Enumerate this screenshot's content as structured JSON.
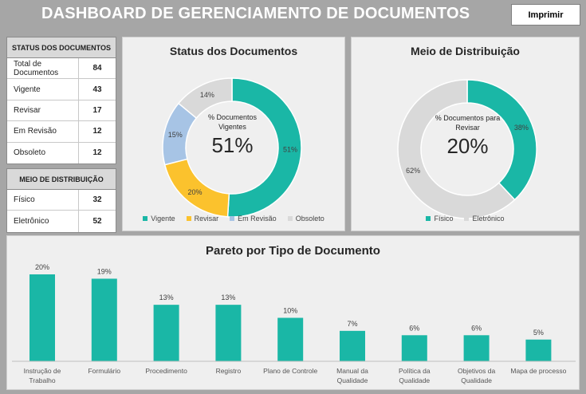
{
  "header": {
    "title": "DASHBOARD DE GERENCIAMENTO DE DOCUMENTOS",
    "print_label": "Imprimir"
  },
  "status_table": {
    "title": "STATUS DOS DOCUMENTOS",
    "rows": [
      {
        "label": "Total de Documentos",
        "value": "84"
      },
      {
        "label": "Vigente",
        "value": "43"
      },
      {
        "label": "Revisar",
        "value": "17"
      },
      {
        "label": "Em Revisão",
        "value": "12"
      },
      {
        "label": "Obsoleto",
        "value": "12"
      }
    ]
  },
  "distribution_table": {
    "title": "MEIO DE DISTRIBUIÇÃO",
    "rows": [
      {
        "label": "Físico",
        "value": "32"
      },
      {
        "label": "Eletrônico",
        "value": "52"
      }
    ]
  },
  "center": {
    "status": {
      "label": "% Documentos Vigentes",
      "value": "51%"
    },
    "distribution": {
      "label": "% Documentos para Revisar",
      "value": "20%"
    }
  },
  "colors": {
    "teal": "#1ab7a6",
    "yellow": "#fbc22d",
    "lightblue": "#a7c4e5",
    "gray": "#d9d9d9"
  },
  "chart_data": [
    {
      "type": "pie",
      "title": "Status dos Documentos",
      "categories": [
        "Vigente",
        "Revisar",
        "Em Revisão",
        "Obsoleto"
      ],
      "values": [
        51,
        20,
        15,
        14
      ],
      "data_labels": [
        "51%",
        "20%",
        "15%",
        "14%"
      ],
      "colors": [
        "#1ab7a6",
        "#fbc22d",
        "#a7c4e5",
        "#d9d9d9"
      ],
      "legend": "bottom"
    },
    {
      "type": "pie",
      "title": "Meio de Distribuição",
      "categories": [
        "Físico",
        "Eletrônico"
      ],
      "values": [
        38,
        62
      ],
      "data_labels": [
        "38%",
        "62%"
      ],
      "colors": [
        "#1ab7a6",
        "#d9d9d9"
      ],
      "legend": "bottom"
    },
    {
      "type": "bar",
      "title": "Pareto por Tipo de Documento",
      "categories": [
        "Instrução de Trabalho",
        "Formulário",
        "Procedimento",
        "Registro",
        "Plano de Controle",
        "Manual da Qualidade",
        "Política da Qualidade",
        "Objetivos da Qualidade",
        "Mapa de processo"
      ],
      "values": [
        20,
        19,
        13,
        13,
        10,
        7,
        6,
        6,
        5
      ],
      "data_labels": [
        "20%",
        "19%",
        "13%",
        "13%",
        "10%",
        "7%",
        "6%",
        "6%",
        "5%"
      ],
      "tick_lines": [
        [
          "Instrução de",
          "Trabalho"
        ],
        [
          "Formulário"
        ],
        [
          "Procedimento"
        ],
        [
          "Registro"
        ],
        [
          "Plano de Controle"
        ],
        [
          "Manual da",
          "Qualidade"
        ],
        [
          "Política da",
          "Qualidade"
        ],
        [
          "Objetivos da",
          "Qualidade"
        ],
        [
          "Mapa de processo"
        ]
      ],
      "ylim": [
        0,
        20
      ],
      "color": "#1ab7a6",
      "grid": false
    }
  ]
}
